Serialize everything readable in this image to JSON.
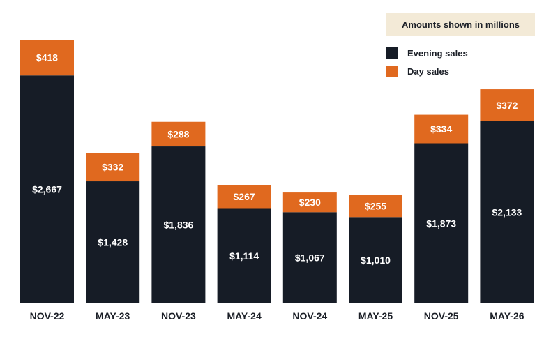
{
  "note": "Amounts shown in millions",
  "chart_data": {
    "type": "bar",
    "stacked": true,
    "categories": [
      "NOV-22",
      "MAY-23",
      "NOV-23",
      "MAY-24",
      "NOV-24",
      "MAY-25",
      "NOV-25",
      "MAY-26"
    ],
    "series": [
      {
        "name": "Evening sales",
        "values": [
          2667,
          1428,
          1836,
          1114,
          1067,
          1010,
          1873,
          2133
        ],
        "labels": [
          "$2,667",
          "$1,428",
          "$1,836",
          "$1,114",
          "$1,067",
          "$1,010",
          "$1,873",
          "$2,133"
        ],
        "color": "#161c26"
      },
      {
        "name": "Day sales",
        "values": [
          418,
          332,
          288,
          267,
          230,
          255,
          334,
          372
        ],
        "labels": [
          "$418",
          "$332",
          "$288",
          "$267",
          "$230",
          "$255",
          "$334",
          "$372"
        ],
        "color": "#e0691f"
      }
    ],
    "legend_position": "top-right",
    "grid": false
  }
}
